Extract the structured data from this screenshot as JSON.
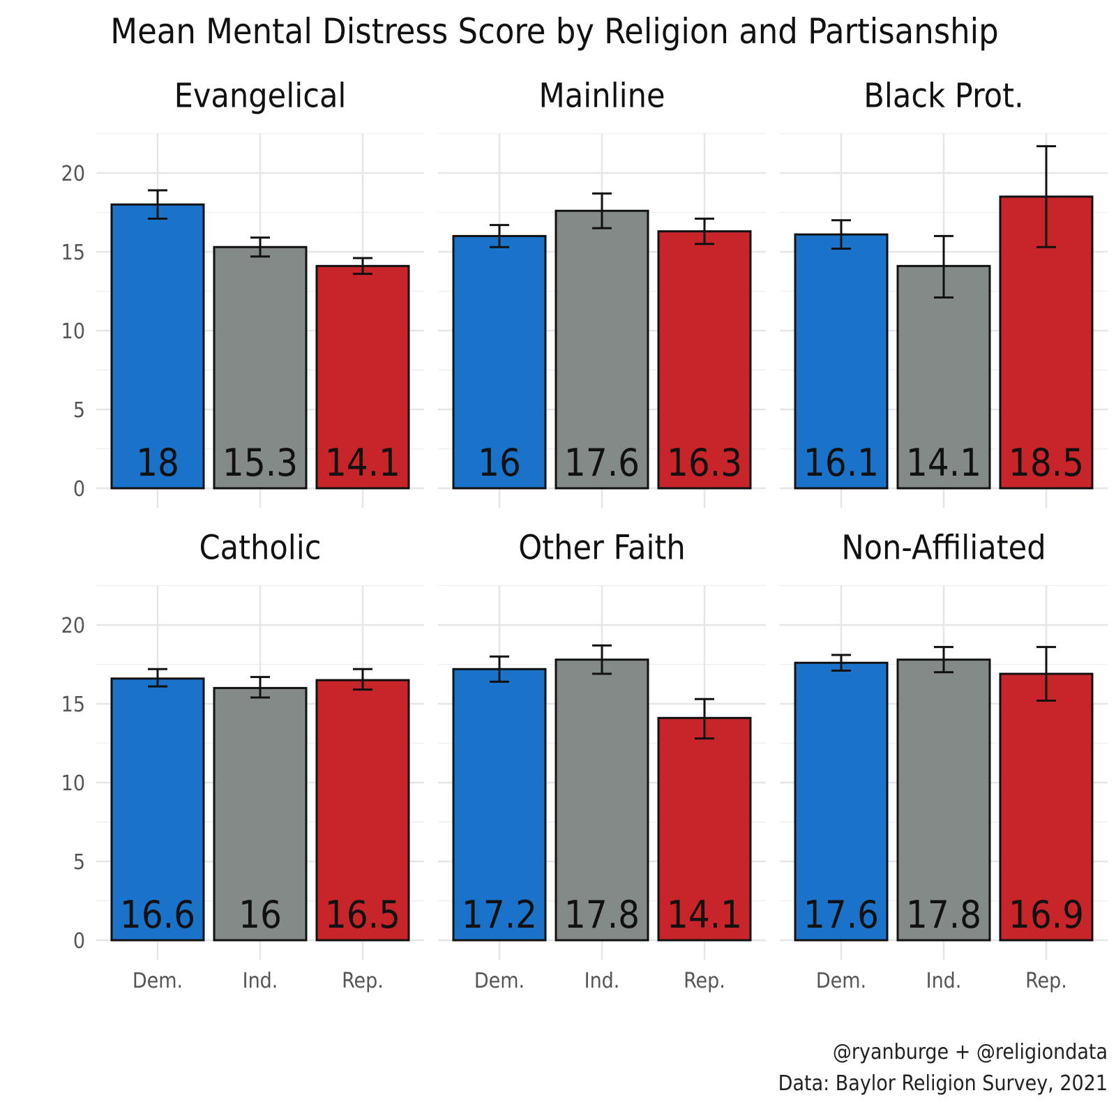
{
  "chart_data": {
    "type": "bar",
    "title": "Mean Mental Distress Score by Religion and Partisanship",
    "xlabel": "",
    "ylabel": "",
    "ylim": [
      0,
      22.5
    ],
    "yticks": [
      0,
      5,
      10,
      15,
      20
    ],
    "categories": [
      "Dem.",
      "Ind.",
      "Rep."
    ],
    "colors": [
      "#1a73c9",
      "#838a88",
      "#c8252a"
    ],
    "panels": [
      {
        "name": "Evangelical",
        "values": [
          18,
          15.3,
          14.1
        ],
        "labels": [
          "18",
          "15.3",
          "14.1"
        ],
        "ci_low": [
          17.1,
          14.7,
          13.6
        ],
        "ci_high": [
          18.9,
          15.9,
          14.6
        ]
      },
      {
        "name": "Mainline",
        "values": [
          16,
          17.6,
          16.3
        ],
        "labels": [
          "16",
          "17.6",
          "16.3"
        ],
        "ci_low": [
          15.3,
          16.5,
          15.5
        ],
        "ci_high": [
          16.7,
          18.7,
          17.1
        ]
      },
      {
        "name": "Black Prot.",
        "values": [
          16.1,
          14.1,
          18.5
        ],
        "labels": [
          "16.1",
          "14.1",
          "18.5"
        ],
        "ci_low": [
          15.2,
          12.1,
          15.3
        ],
        "ci_high": [
          17.0,
          16.0,
          21.7
        ]
      },
      {
        "name": "Catholic",
        "values": [
          16.6,
          16,
          16.5
        ],
        "labels": [
          "16.6",
          "16",
          "16.5"
        ],
        "ci_low": [
          16.1,
          15.4,
          15.9
        ],
        "ci_high": [
          17.2,
          16.7,
          17.2
        ]
      },
      {
        "name": "Other Faith",
        "values": [
          17.2,
          17.8,
          14.1
        ],
        "labels": [
          "17.2",
          "17.8",
          "14.1"
        ],
        "ci_low": [
          16.4,
          16.9,
          12.8
        ],
        "ci_high": [
          18.0,
          18.7,
          15.3
        ]
      },
      {
        "name": "Non-Affiliated",
        "values": [
          17.6,
          17.8,
          16.9
        ],
        "labels": [
          "17.6",
          "17.8",
          "16.9"
        ],
        "ci_low": [
          17.1,
          17.0,
          15.2
        ],
        "ci_high": [
          18.1,
          18.6,
          18.6
        ]
      }
    ],
    "caption": [
      "@ryanburge + @religiondata",
      "Data: Baylor Religion Survey, 2021"
    ]
  }
}
